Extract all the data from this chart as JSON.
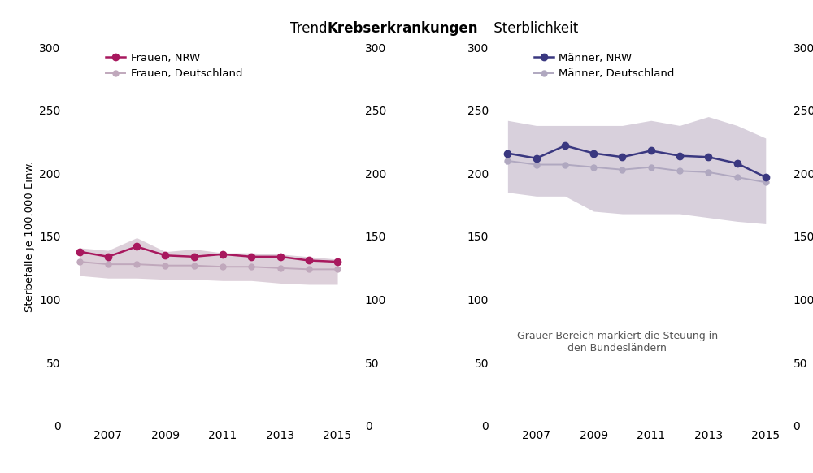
{
  "years": [
    2006,
    2007,
    2008,
    2009,
    2010,
    2011,
    2012,
    2013,
    2014,
    2015
  ],
  "frauen_nrw": [
    138,
    134,
    142,
    135,
    134,
    136,
    134,
    134,
    131,
    130
  ],
  "frauen_de": [
    130,
    128,
    128,
    127,
    127,
    126,
    126,
    125,
    124,
    124
  ],
  "frauen_de_low": [
    119,
    117,
    117,
    116,
    116,
    115,
    115,
    113,
    112,
    112
  ],
  "frauen_de_high": [
    141,
    139,
    149,
    138,
    140,
    137,
    137,
    136,
    134,
    132
  ],
  "maenner_nrw": [
    216,
    212,
    222,
    216,
    213,
    218,
    214,
    213,
    208,
    197
  ],
  "maenner_de": [
    210,
    207,
    207,
    205,
    203,
    205,
    202,
    201,
    197,
    193
  ],
  "maenner_de_low": [
    185,
    182,
    182,
    170,
    168,
    168,
    168,
    165,
    162,
    160
  ],
  "maenner_de_high": [
    242,
    238,
    238,
    238,
    238,
    242,
    238,
    245,
    238,
    228
  ],
  "frauen_nrw_color": "#A8185E",
  "frauen_de_color": "#C0A8BC",
  "maenner_nrw_color": "#3A3880",
  "maenner_de_color": "#B0A8C0",
  "shade_color_frauen": "#DDD0DA",
  "shade_color_maenner": "#D8D0DC",
  "ylim": [
    0,
    300
  ],
  "yticks": [
    0,
    50,
    100,
    150,
    200,
    250,
    300
  ],
  "xticks": [
    2007,
    2009,
    2011,
    2013,
    2015
  ],
  "ylabel": "Sterbefälle je 100.000 Einw.",
  "frauen_nrw_label": "Frauen, NRW",
  "frauen_de_label": "Frauen, Deutschland",
  "maenner_nrw_label": "Männer, NRW",
  "maenner_de_label": "Männer, Deutschland",
  "annotation": "Grauer Bereich markiert die Steuung in\nden Bundesländern",
  "title_prefix": "Trend ",
  "title_bold": "Krebserkrankungen",
  "title_suffix": " Sterblichkeit",
  "background_color": "#FFFFFF",
  "grid_color": "#FFFFFF",
  "linewidth_main": 1.8,
  "linewidth_de": 1.4,
  "markersize_main": 6,
  "markersize_de": 5,
  "title_fontsize": 12,
  "tick_fontsize": 10,
  "legend_fontsize": 9.5,
  "ylabel_fontsize": 9.5,
  "xlim_left": 2005.5,
  "xlim_right": 2015.8
}
